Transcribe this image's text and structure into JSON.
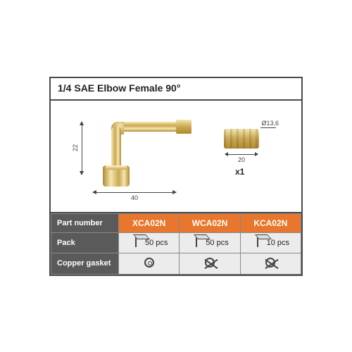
{
  "title": "1/4 SAE Elbow Female 90°",
  "dimensions": {
    "horizontal": "40",
    "vertical": "22",
    "insert_width": "20",
    "insert_diameter": "Ø13,6",
    "insert_qty": "x1"
  },
  "table": {
    "row_headers": [
      "Part number",
      "Pack",
      "Copper gasket"
    ],
    "columns": [
      "XCA02N",
      "WCA02N",
      "KCA02N"
    ],
    "pack": [
      "50 pcs",
      "50 pcs",
      "10 pcs"
    ],
    "gasket": [
      "included",
      "excluded",
      "excluded"
    ]
  },
  "colors": {
    "panel_border": "#4a4a4a",
    "header_bg": "#5a5a5a",
    "accent_bg": "#e8762c",
    "cell_bg": "#ececec",
    "brass_light": "#f5e6b0",
    "brass_mid": "#c9a852",
    "brass_dark": "#b08a30"
  },
  "typography": {
    "title_fontsize": 14,
    "label_fontsize": 11,
    "dim_fontsize": 9
  }
}
